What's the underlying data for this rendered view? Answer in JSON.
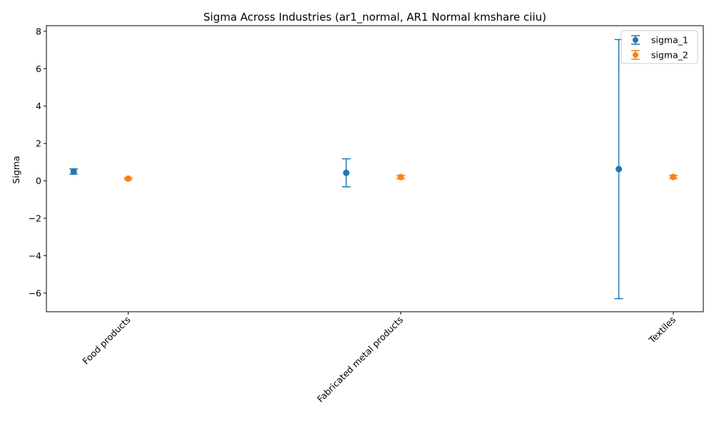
{
  "chart_data": {
    "type": "scatter",
    "title": "Sigma Across Industries (ar1_normal, AR1 Normal kmshare ciiu)",
    "xlabel": "",
    "ylabel": "Sigma",
    "categories": [
      "Food products",
      "Fabricated metal products",
      "Textiles"
    ],
    "ylim": [
      -7.0,
      8.3
    ],
    "yticks": [
      -6,
      -4,
      -2,
      0,
      2,
      4,
      6,
      8
    ],
    "grid": false,
    "legend_position": "top-right",
    "series": [
      {
        "name": "sigma_1",
        "color": "#1f77b4",
        "offset": -0.2,
        "values": [
          0.5,
          0.43,
          0.63
        ],
        "errors": [
          0.14,
          0.75,
          6.93
        ]
      },
      {
        "name": "sigma_2",
        "color": "#ff7f0e",
        "offset": 0,
        "values": [
          0.12,
          0.2,
          0.21
        ],
        "errors": [
          0.05,
          0.09,
          0.09
        ]
      }
    ]
  }
}
